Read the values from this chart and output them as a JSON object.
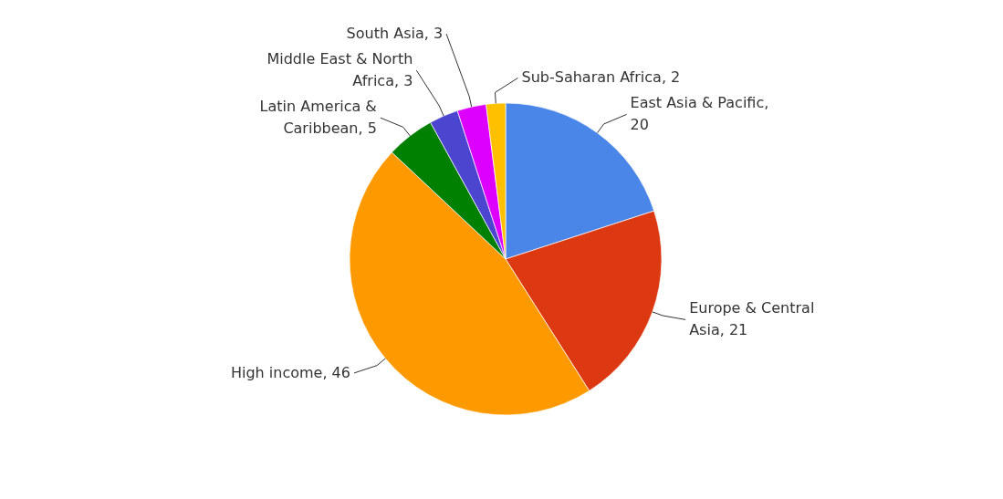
{
  "chart_data": {
    "type": "pie",
    "categories": [
      "East Asia & Pacific, 20",
      "Europe & Central Asia, 21",
      "High income, 46",
      "Latin America & Caribbean, 5",
      "Middle East & North Africa, 3",
      "South Asia, 3",
      "Sub-Saharan Africa, 2"
    ],
    "values": [
      20,
      21,
      46,
      5,
      3,
      3,
      2
    ],
    "colors": [
      "#4a86e8",
      "#dc3912",
      "#ff9900",
      "#008000",
      "#4b45d0",
      "#dd00ff",
      "#ffc000"
    ],
    "legend": false
  }
}
